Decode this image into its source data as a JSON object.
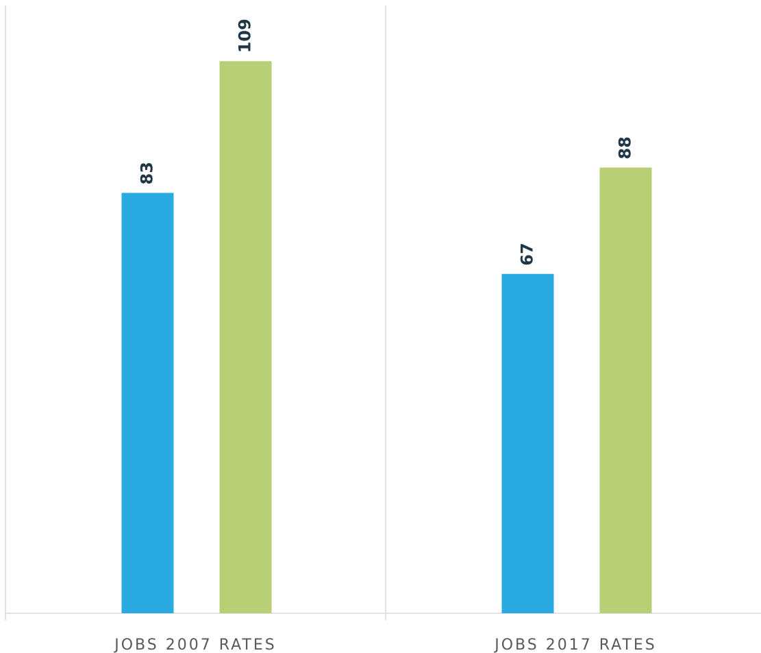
{
  "chart_data": {
    "type": "bar",
    "categories": [
      "JOBS 2007 RATES",
      "JOBS 2017 RATES"
    ],
    "series": [
      {
        "color": "#29abe2",
        "values": [
          83,
          67
        ]
      },
      {
        "color": "#b9cf76",
        "values": [
          109,
          88
        ]
      }
    ],
    "ylim": [
      0,
      120
    ]
  }
}
